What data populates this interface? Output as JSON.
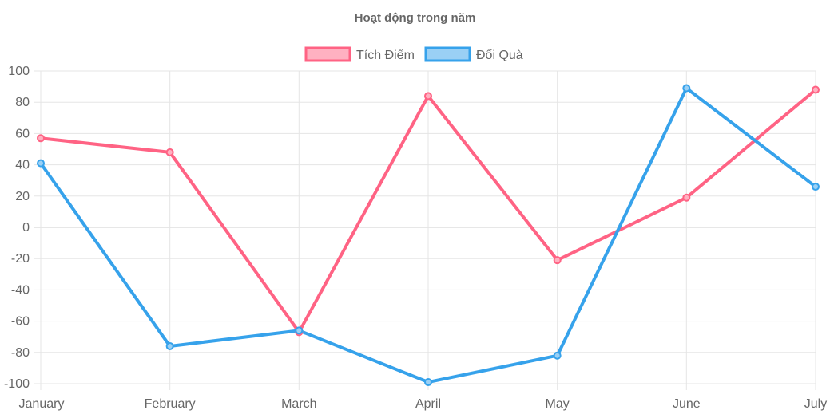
{
  "chart_data": {
    "type": "line",
    "title": "Hoạt động trong năm",
    "categories": [
      "January",
      "February",
      "March",
      "April",
      "May",
      "June",
      "July"
    ],
    "series": [
      {
        "name": "Tích Điểm",
        "values": [
          57,
          48,
          -67,
          84,
          -21,
          19,
          88
        ],
        "color": "#ff6384",
        "fill": "#ffb1c1"
      },
      {
        "name": "Đổi Quà",
        "values": [
          41,
          -76,
          -66,
          -99,
          -82,
          89,
          26
        ],
        "color": "#36a2eb",
        "fill": "#9ad0f5"
      }
    ],
    "ylim": [
      -100,
      100
    ],
    "yticks": [
      100,
      80,
      60,
      40,
      20,
      0,
      -20,
      -40,
      -60,
      -80,
      -100
    ],
    "grid": true,
    "legend": "top"
  }
}
